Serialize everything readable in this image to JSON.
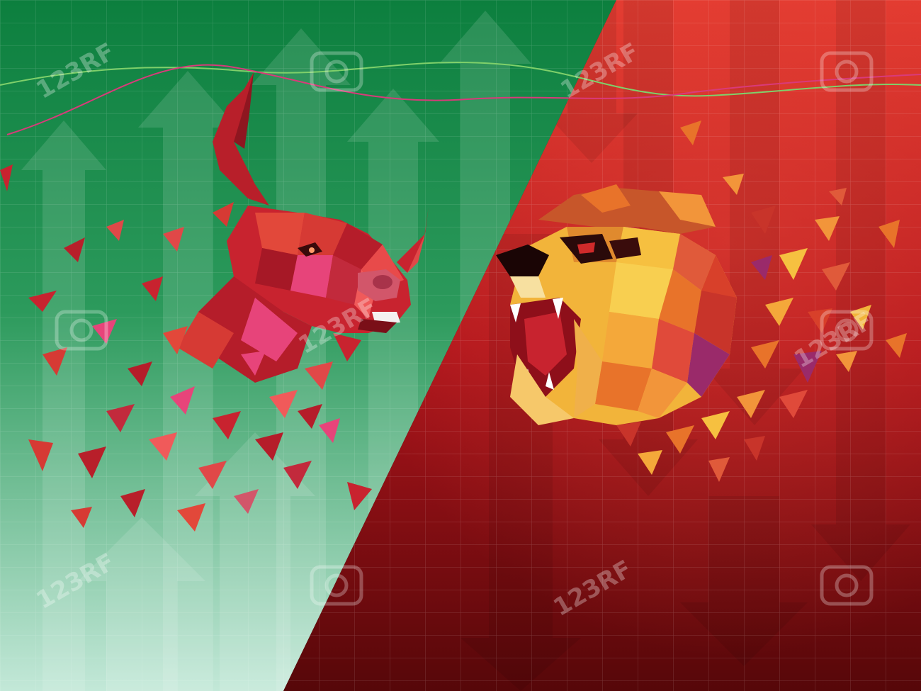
{
  "scene": {
    "subject": "bull-vs-bear-stock-market-illustration",
    "left_panel": {
      "theme": "bull-market",
      "arrow_direction": "up"
    },
    "right_panel": {
      "theme": "bear-market",
      "arrow_direction": "down"
    }
  },
  "watermark": {
    "text": "123RF"
  },
  "colors": {
    "green_top": "#0f8a45",
    "green_bottom": "#b7e2cf",
    "red_top": "#e03a2f",
    "red_bottom": "#5e0a0c",
    "bull_red": "#c8232f",
    "bull_pink": "#e7447a",
    "bear_gold": "#f2b43a",
    "bear_orange": "#e8732a",
    "green_line": "#7fd06a",
    "pink_line": "#d93a7a"
  },
  "icons": {
    "watermark": "camera-icon",
    "up_arrow": "arrow-up-icon",
    "down_arrow": "arrow-down-icon"
  }
}
